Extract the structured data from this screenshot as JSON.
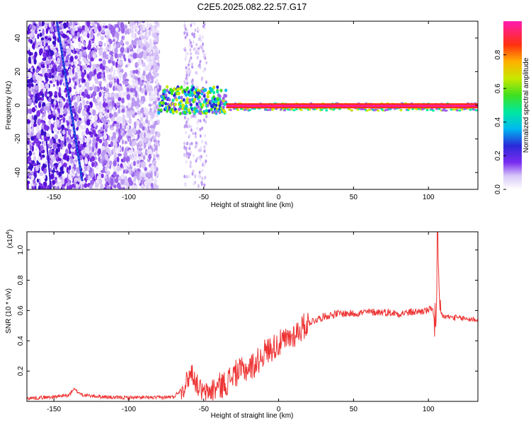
{
  "title": "C2E5.2025.082.22.57.G17",
  "chart_data": [
    {
      "type": "heatmap",
      "xlabel": "Height of straight line (km)",
      "ylabel": "Frequency (Hz)",
      "xlim": [
        -168,
        133
      ],
      "ylim": [
        -50,
        50
      ],
      "xticks": [
        -150,
        -100,
        -50,
        0,
        50,
        100
      ],
      "yticks": [
        -40,
        -20,
        0,
        20,
        40
      ],
      "colorbar": {
        "label": "Normalized spectral amplitude",
        "range": [
          0.0,
          1.0
        ],
        "ticks": [
          "0.0",
          "0.2",
          "0.4",
          "0.6",
          "0.8"
        ],
        "tick_values": [
          0.0,
          0.2,
          0.4,
          0.6,
          0.8
        ]
      },
      "features": {
        "scatter_region_x": [
          -168,
          -80
        ],
        "sparse_band_x": [
          -63,
          -48
        ],
        "carrier_line_freq": 0,
        "carrier_start_x": -35,
        "strong_streak_line": [
          [
            -148,
            50
          ],
          [
            -131,
            -45
          ]
        ],
        "second_streak_line": [
          [
            -155,
            -20
          ],
          [
            -152,
            -50
          ]
        ]
      }
    },
    {
      "type": "line",
      "xlabel": "Height of straight line (km)",
      "ylabel": "SNR (10 * v/v)",
      "y_multiplier": "(x10",
      "y_multiplier_exp": "4",
      "exp_close": ")",
      "xlim": [
        -168,
        133
      ],
      "ylim": [
        0,
        1.12
      ],
      "xticks": [
        -150,
        -100,
        -50,
        0,
        50,
        100
      ],
      "yticks": [
        0.2,
        0.4,
        0.6,
        0.8,
        1.0
      ],
      "ytick_labels": [
        "0.2",
        "0.4",
        "0.6",
        "0.8",
        "1.0"
      ],
      "color": "#ee3333",
      "x": [
        -168,
        -150,
        -140,
        -137,
        -130,
        -110,
        -80,
        -70,
        -63,
        -58,
        -55,
        -50,
        -45,
        -40,
        -35,
        -30,
        -25,
        -20,
        -15,
        -10,
        -5,
        0,
        5,
        10,
        15,
        20,
        30,
        40,
        50,
        60,
        70,
        80,
        90,
        100,
        103,
        105,
        106,
        107,
        110,
        120,
        133
      ],
      "y": [
        0.02,
        0.03,
        0.04,
        0.08,
        0.04,
        0.025,
        0.025,
        0.03,
        0.1,
        0.2,
        0.12,
        0.05,
        0.07,
        0.1,
        0.12,
        0.18,
        0.2,
        0.22,
        0.25,
        0.32,
        0.35,
        0.38,
        0.4,
        0.44,
        0.48,
        0.52,
        0.56,
        0.58,
        0.58,
        0.59,
        0.59,
        0.58,
        0.59,
        0.6,
        0.62,
        0.4,
        1.05,
        0.6,
        0.56,
        0.55,
        0.54
      ]
    }
  ]
}
